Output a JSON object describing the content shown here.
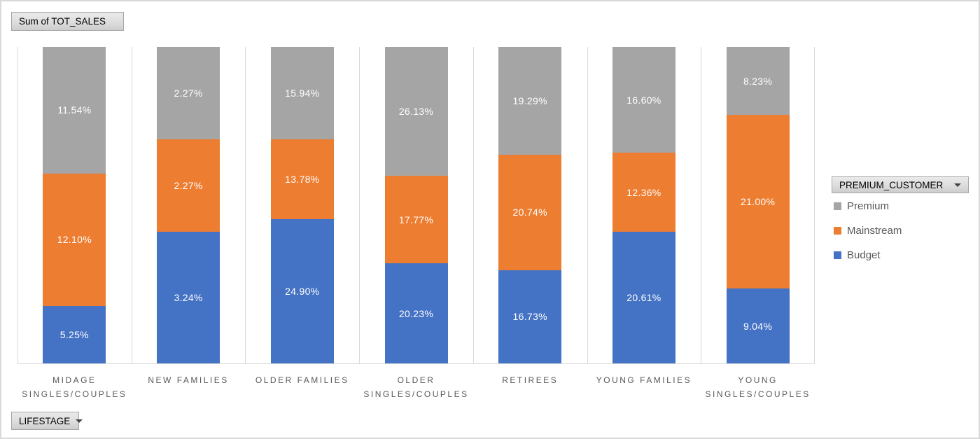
{
  "field_buttons": {
    "values_label": "Sum of TOT_SALES",
    "legend_label": "PREMIUM_CUSTOMER",
    "axis_label": "LIFESTAGE"
  },
  "chart_data": {
    "type": "bar",
    "subtype": "100-percent-stacked-column",
    "title": "Sum of TOT_SALES",
    "legend_title": "PREMIUM_CUSTOMER",
    "legend_position": "right",
    "category_field": "LIFESTAGE",
    "categories": [
      "MIDAGE SINGLES/COUPLES",
      "NEW FAMILIES",
      "OLDER FAMILIES",
      "OLDER SINGLES/COUPLES",
      "RETIREES",
      "YOUNG FAMILIES",
      "YOUNG SINGLES/COUPLES"
    ],
    "series": [
      {
        "name": "Premium",
        "color": "#A5A5A5",
        "values": [
          11.54,
          2.27,
          15.94,
          26.13,
          19.29,
          16.6,
          8.23
        ],
        "labels": [
          "11.54%",
          "2.27%",
          "15.94%",
          "26.13%",
          "19.29%",
          "16.60%",
          "8.23%"
        ]
      },
      {
        "name": "Mainstream",
        "color": "#ED7D31",
        "values": [
          12.1,
          2.27,
          13.78,
          17.77,
          20.74,
          12.36,
          21.0
        ],
        "labels": [
          "12.10%",
          "2.27%",
          "13.78%",
          "17.77%",
          "20.74%",
          "12.36%",
          "21.00%"
        ]
      },
      {
        "name": "Budget",
        "color": "#4472C4",
        "values": [
          5.25,
          3.24,
          24.9,
          20.23,
          16.73,
          20.61,
          9.04
        ],
        "labels": [
          "5.25%",
          "3.24%",
          "24.90%",
          "20.23%",
          "16.73%",
          "20.61%",
          "9.04%"
        ]
      }
    ],
    "stack_order_top_to_bottom": [
      "Premium",
      "Mainstream",
      "Budget"
    ],
    "bars_normalized_to_100_percent": true,
    "ylim": [
      0,
      100
    ],
    "gridlines": "vertical category separators",
    "colors": {
      "gridline": "#D9D9D9",
      "axis_line": "#D9D9D9",
      "axis_text": "#595959",
      "data_label_text": "#FFFFFF",
      "chart_border": "#D9D9D9"
    }
  }
}
